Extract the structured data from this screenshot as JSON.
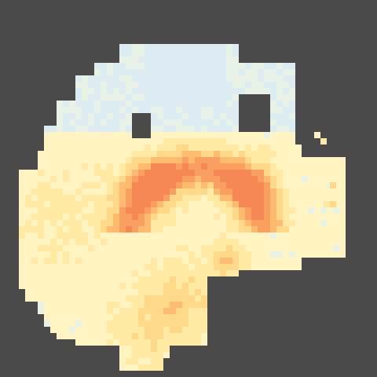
{
  "image": {
    "kind": "pixelated heat map slice",
    "background_color": "#4a4a4a",
    "hole_color": "#4a4a4a",
    "palette": [
      "#dcecf2",
      "#e8f2e6",
      "#fff4c2",
      "#ffe9a3",
      "#ffd98a",
      "#fdbb6f",
      "#f99f5f",
      "#f58854"
    ],
    "palette_meaning": [
      "coldest",
      "cold",
      "neutral-light",
      "neutral",
      "warm",
      "warmer",
      "hot",
      "hottest"
    ]
  }
}
